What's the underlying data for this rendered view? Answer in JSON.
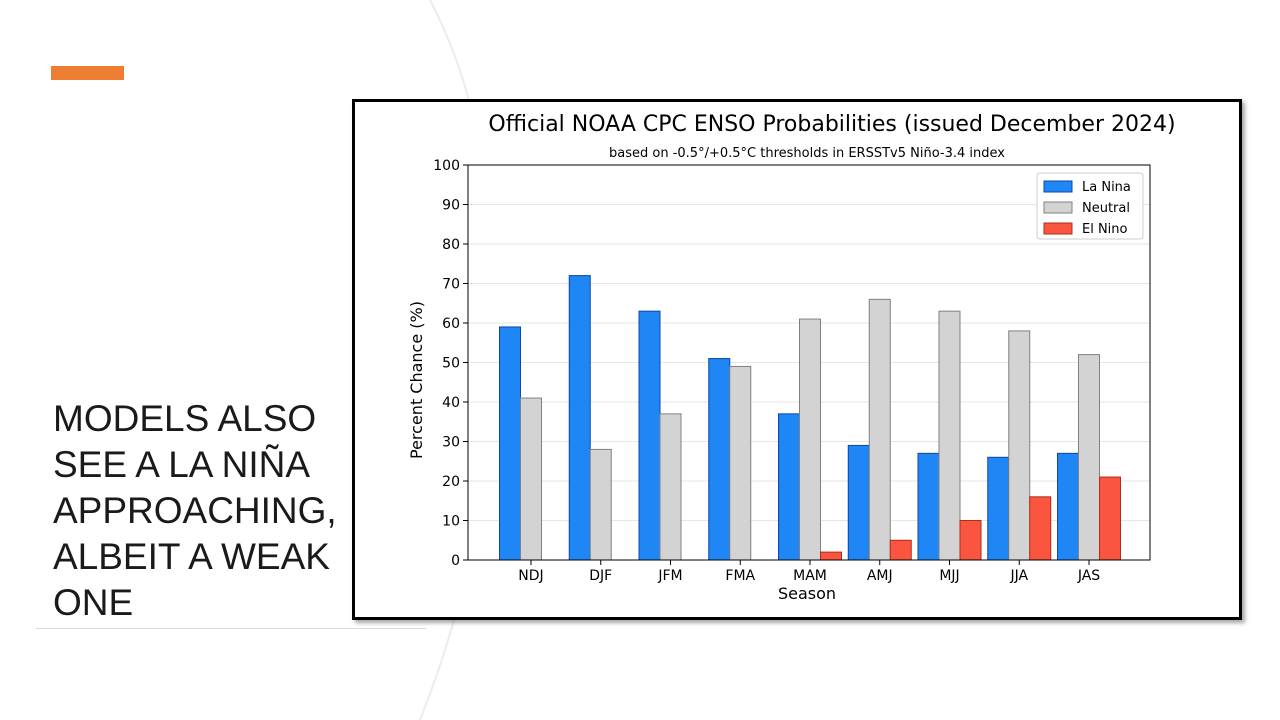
{
  "slide": {
    "title": "MODELS ALSO SEE A LA NIÑA APPROACHING, ALBEIT A WEAK ONE",
    "accent_color": "#ed7d31"
  },
  "chart_data": {
    "type": "bar",
    "title": "Official NOAA CPC ENSO Probabilities (issued December 2024)",
    "subtitle": "based on -0.5°/+0.5°C thresholds in ERSSTv5 Niño-3.4 index",
    "xlabel": "Season",
    "ylabel": "Percent Chance (%)",
    "ylim": [
      0,
      100
    ],
    "yticks": [
      "0",
      "10",
      "20",
      "30",
      "40",
      "50",
      "60",
      "70",
      "80",
      "90",
      "100"
    ],
    "grid": true,
    "legend_position": "top-right",
    "categories": [
      "NDJ",
      "DJF",
      "JFM",
      "FMA",
      "MAM",
      "AMJ",
      "MJJ",
      "JJA",
      "JAS"
    ],
    "series": [
      {
        "name": "La Nina",
        "color": "#1f87f5",
        "edge": "#1144aa",
        "values": [
          59,
          72,
          63,
          51,
          37,
          29,
          27,
          26,
          27
        ]
      },
      {
        "name": "Neutral",
        "color": "#d3d3d3",
        "edge": "#808080",
        "values": [
          41,
          28,
          37,
          49,
          61,
          66,
          63,
          58,
          52
        ]
      },
      {
        "name": "El Nino",
        "color": "#f9553f",
        "edge": "#b22b1a",
        "values": [
          0,
          0,
          0,
          0,
          2,
          5,
          10,
          16,
          21
        ]
      }
    ]
  }
}
